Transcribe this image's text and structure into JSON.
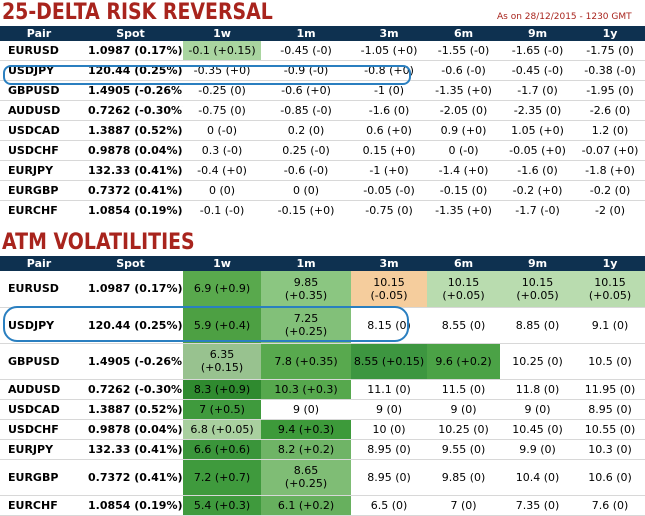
{
  "risk_reversal": {
    "title": "25-DELTA RISK REVERSAL",
    "as_of": "As on 28/12/2015 - 1230 GMT",
    "columns": [
      "Pair",
      "Spot",
      "1w",
      "1m",
      "3m",
      "6m",
      "9m",
      "1y"
    ],
    "rows": [
      {
        "pair": "EURUSD",
        "spot": "1.0987 (0.17%)",
        "values": [
          "-0.1 (+0.15)",
          "-0.45 (-0)",
          "-1.05 (+0)",
          "-1.55 (-0)",
          "-1.65 (-0)",
          "-1.75 (0)"
        ]
      },
      {
        "pair": "USDJPY",
        "spot": "120.44 (0.25%)",
        "values": [
          "-0.35 (+0)",
          "-0.9 (-0)",
          "-0.8 (+0)",
          "-0.6 (-0)",
          "-0.45 (-0)",
          "-0.38 (-0)"
        ]
      },
      {
        "pair": "GBPUSD",
        "spot": "1.4905 (-0.26%)",
        "values": [
          "-0.25 (0)",
          "-0.6 (+0)",
          "-1 (0)",
          "-1.35 (+0)",
          "-1.7 (0)",
          "-1.95 (0)"
        ]
      },
      {
        "pair": "AUDUSD",
        "spot": "0.7262 (-0.30%)",
        "values": [
          "-0.75 (0)",
          "-0.85 (-0)",
          "-1.6 (0)",
          "-2.05 (0)",
          "-2.35 (0)",
          "-2.6 (0)"
        ]
      },
      {
        "pair": "USDCAD",
        "spot": "1.3887 (0.52%)",
        "values": [
          "0 (-0)",
          "0.2 (0)",
          "0.6 (+0)",
          "0.9 (+0)",
          "1.05 (+0)",
          "1.2 (0)"
        ]
      },
      {
        "pair": "USDCHF",
        "spot": "0.9878 (0.04%)",
        "values": [
          "0.3 (-0)",
          "0.25 (-0)",
          "0.15 (+0)",
          "0 (-0)",
          "-0.05 (+0)",
          "-0.07 (+0)"
        ]
      },
      {
        "pair": "EURJPY",
        "spot": "132.33 (0.41%)",
        "values": [
          "-0.4 (+0)",
          "-0.6 (-0)",
          "-1 (+0)",
          "-1.4 (+0)",
          "-1.6 (0)",
          "-1.8 (+0)"
        ]
      },
      {
        "pair": "EURGBP",
        "spot": "0.7372 (0.41%)",
        "values": [
          "0 (0)",
          "0 (0)",
          "-0.05 (-0)",
          "-0.15 (0)",
          "-0.2 (+0)",
          "-0.2 (0)"
        ]
      },
      {
        "pair": "EURCHF",
        "spot": "1.0854 (0.19%)",
        "values": [
          "-0.1 (-0)",
          "-0.15 (+0)",
          "-0.75 (0)",
          "-1.35 (+0)",
          "-1.7 (-0)",
          "-2 (0)"
        ]
      }
    ]
  },
  "atm_volatilities": {
    "title": "ATM VOLATILITIES",
    "columns": [
      "Pair",
      "Spot",
      "1w",
      "1m",
      "3m",
      "6m",
      "9m",
      "1y"
    ],
    "rows": [
      {
        "pair": "EURUSD",
        "spot": "1.0987 (0.17%)",
        "values": [
          [
            "6.9 (+0.9)"
          ],
          [
            "9.85",
            "(+0.35)"
          ],
          [
            "10.15",
            "(-0.05)"
          ],
          [
            "10.15",
            "(+0.05)"
          ],
          [
            "10.15",
            "(+0.05)"
          ],
          [
            "10.15",
            "(+0.05)"
          ]
        ]
      },
      {
        "pair": "USDJPY",
        "spot": "120.44 (0.25%)",
        "values": [
          [
            "5.9 (+0.4)"
          ],
          [
            "7.25",
            "(+0.25)"
          ],
          [
            "8.15 (0)"
          ],
          [
            "8.55 (0)"
          ],
          [
            "8.85 (0)"
          ],
          [
            "9.1 (0)"
          ]
        ]
      },
      {
        "pair": "GBPUSD",
        "spot": "1.4905 (-0.26%)",
        "values": [
          [
            "6.35",
            "(+0.15)"
          ],
          [
            "7.8 (+0.35)"
          ],
          [
            "8.55 (+0.15)"
          ],
          [
            "9.6 (+0.2)"
          ],
          [
            "10.25 (0)"
          ],
          [
            "10.5 (0)"
          ]
        ]
      },
      {
        "pair": "AUDUSD",
        "spot": "0.7262 (-0.30%)",
        "values": [
          [
            "8.3 (+0.9)"
          ],
          [
            "10.3 (+0.3)"
          ],
          [
            "11.1 (0)"
          ],
          [
            "11.5 (0)"
          ],
          [
            "11.8 (0)"
          ],
          [
            "11.95 (0)"
          ]
        ]
      },
      {
        "pair": "USDCAD",
        "spot": "1.3887 (0.52%)",
        "values": [
          [
            "7 (+0.5)"
          ],
          [
            "9 (0)"
          ],
          [
            "9 (0)"
          ],
          [
            "9 (0)"
          ],
          [
            "9 (0)"
          ],
          [
            "8.95 (0)"
          ]
        ]
      },
      {
        "pair": "USDCHF",
        "spot": "0.9878 (0.04%)",
        "values": [
          [
            "6.8 (+0.05)"
          ],
          [
            "9.4 (+0.3)"
          ],
          [
            "10 (0)"
          ],
          [
            "10.25 (0)"
          ],
          [
            "10.45 (0)"
          ],
          [
            "10.55 (0)"
          ]
        ]
      },
      {
        "pair": "EURJPY",
        "spot": "132.33 (0.41%)",
        "values": [
          [
            "6.6 (+0.6)"
          ],
          [
            "8.2 (+0.2)"
          ],
          [
            "8.95 (0)"
          ],
          [
            "9.55 (0)"
          ],
          [
            "9.9 (0)"
          ],
          [
            "10.3 (0)"
          ]
        ]
      },
      {
        "pair": "EURGBP",
        "spot": "0.7372 (0.41%)",
        "values": [
          [
            "7.2 (+0.7)"
          ],
          [
            "8.65",
            "(+0.25)"
          ],
          [
            "8.95 (0)"
          ],
          [
            "9.85 (0)"
          ],
          [
            "10.4 (0)"
          ],
          [
            "10.6 (0)"
          ]
        ]
      },
      {
        "pair": "EURCHF",
        "spot": "1.0854 (0.19%)",
        "values": [
          [
            "5.4 (+0.3)"
          ],
          [
            "6.1 (+0.2)"
          ],
          [
            "6.5 (0)"
          ],
          [
            "7 (0)"
          ],
          [
            "7.35 (0)"
          ],
          [
            "7.6 (0)"
          ]
        ]
      }
    ],
    "cell_colors": [
      [
        "#59a94d",
        "#8bc681",
        "#f5cd9d",
        "#b9dcaf",
        "#b9dcaf",
        "#b9dcaf"
      ],
      [
        "#4da043",
        "#82c079",
        "",
        "",
        "",
        ""
      ],
      [
        "#98c28f",
        "#58a94e",
        "#3d9640",
        "#4ba246",
        "",
        ""
      ],
      [
        "#2f8a2f",
        "#56a84d",
        "",
        "",
        "",
        ""
      ],
      [
        "#3f9a3d",
        "",
        "",
        "",
        "",
        ""
      ],
      [
        "#a9d09f",
        "#3d9a3a",
        "",
        "",
        "",
        ""
      ],
      [
        "#3a953a",
        "#6fb466",
        "",
        "",
        "",
        ""
      ],
      [
        "#3f9a3d",
        "#7fbd75",
        "",
        "",
        "",
        ""
      ],
      [
        "#3f9a3d",
        "#67b05e",
        "",
        "",
        "",
        ""
      ]
    ]
  },
  "colors": {
    "title": "#a8241d",
    "header_bg": "#0e3150",
    "rr_1w_highlight": "#a9d5a0",
    "row_highlight_outline": "#2a7fc0"
  }
}
